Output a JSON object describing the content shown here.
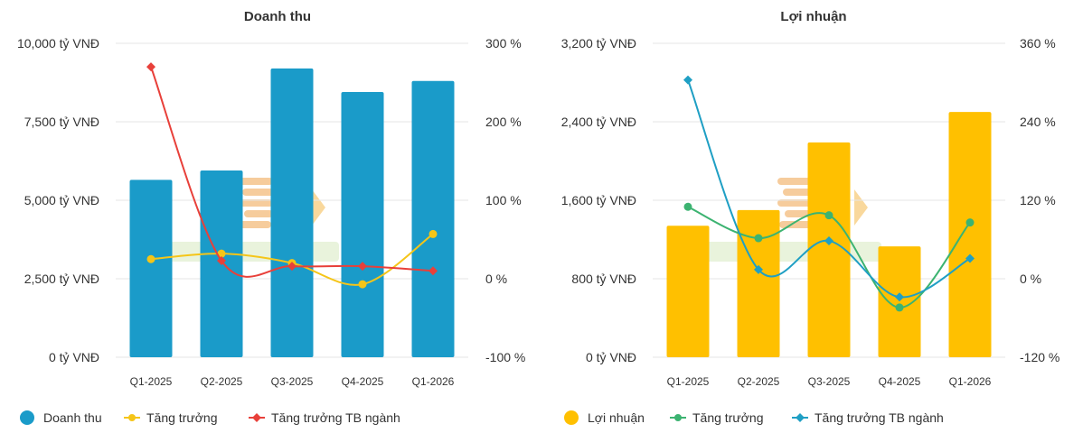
{
  "chart_data": [
    {
      "type": "bar",
      "title": "Doanh thu",
      "categories": [
        "Q1-2025",
        "Q2-2025",
        "Q3-2025",
        "Q4-2025",
        "Q1-2026"
      ],
      "left_axis": {
        "ticks": [
          0,
          2500,
          5000,
          7500,
          10000
        ],
        "tick_labels": [
          "0 tỷ VNĐ",
          "2,500 tỷ VNĐ",
          "5,000 tỷ VNĐ",
          "7,500 tỷ VNĐ",
          "10,000 tỷ VNĐ"
        ],
        "ylim": [
          0,
          10000
        ]
      },
      "right_axis": {
        "ticks": [
          -100,
          0,
          100,
          200,
          300
        ],
        "tick_labels": [
          "-100 %",
          "0 %",
          "100 %",
          "200 %",
          "300 %"
        ],
        "ylim": [
          -100,
          300
        ]
      },
      "series": [
        {
          "name": "Doanh thu",
          "kind": "bar",
          "axis": "left",
          "color": "#1a9bc9",
          "values": [
            5650,
            5950,
            9200,
            8450,
            8800
          ]
        },
        {
          "name": "Tăng trưởng",
          "kind": "line",
          "axis": "right",
          "marker": "circle",
          "color": "#f5c518",
          "values": [
            25,
            32,
            20,
            -7,
            57
          ]
        },
        {
          "name": "Tăng trưởng TB ngành",
          "kind": "line",
          "axis": "right",
          "marker": "diamond",
          "color": "#e8403a",
          "values": [
            270,
            23,
            16,
            16,
            10
          ]
        }
      ]
    },
    {
      "type": "bar",
      "title": "Lợi nhuận",
      "categories": [
        "Q1-2025",
        "Q2-2025",
        "Q3-2025",
        "Q4-2025",
        "Q1-2026"
      ],
      "left_axis": {
        "ticks": [
          0,
          800,
          1600,
          2400,
          3200
        ],
        "tick_labels": [
          "0 tỷ VNĐ",
          "800 tỷ VNĐ",
          "1,600 tỷ VNĐ",
          "2,400 tỷ VNĐ",
          "3,200 tỷ VNĐ"
        ],
        "ylim": [
          0,
          3200
        ]
      },
      "right_axis": {
        "ticks": [
          -120,
          0,
          120,
          240,
          360
        ],
        "tick_labels": [
          "-120 %",
          "0 %",
          "120 %",
          "240 %",
          "360 %"
        ],
        "ylim": [
          -120,
          360
        ]
      },
      "series": [
        {
          "name": "Lợi nhuận",
          "kind": "bar",
          "axis": "left",
          "color": "#ffc000",
          "values": [
            1340,
            1500,
            2190,
            1130,
            2500
          ]
        },
        {
          "name": "Tăng trưởng",
          "kind": "line",
          "axis": "right",
          "marker": "circle",
          "color": "#3cb371",
          "values": [
            110,
            62,
            97,
            -44,
            86
          ]
        },
        {
          "name": "Tăng trưởng TB ngành",
          "kind": "line",
          "axis": "right",
          "marker": "diamond",
          "color": "#1f9fc4",
          "values": [
            304,
            14,
            58,
            -28,
            31
          ]
        }
      ]
    }
  ]
}
